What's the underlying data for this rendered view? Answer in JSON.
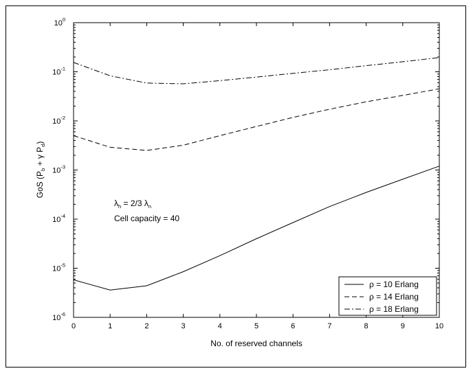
{
  "chart_data": {
    "type": "line",
    "title": "",
    "xlabel": "No. of reserved channels",
    "ylabel": {
      "base": "GoS (P",
      "sub_b": "b",
      "mid": " + γ P",
      "sub_d": "d",
      "end": ")"
    },
    "xlim": [
      0,
      10
    ],
    "ylim": [
      1e-06,
      1
    ],
    "yscale": "log",
    "grid": false,
    "legend_position": "bottom-right",
    "x_ticks": [
      "0",
      "1",
      "2",
      "3",
      "4",
      "5",
      "6",
      "7",
      "8",
      "9",
      "10"
    ],
    "y_ticks": [
      {
        "base": "10",
        "exp": "-6"
      },
      {
        "base": "10",
        "exp": "-5"
      },
      {
        "base": "10",
        "exp": "-4"
      },
      {
        "base": "10",
        "exp": "-3"
      },
      {
        "base": "10",
        "exp": "-2"
      },
      {
        "base": "10",
        "exp": "-1"
      },
      {
        "base": "10",
        "exp": "0"
      }
    ],
    "annotations": {
      "lambda": {
        "l1": "λ",
        "s1": "h",
        "mid": " = 2/3 λ",
        "s2": "n"
      },
      "capacity": "Cell capacity = 40"
    },
    "x": [
      0,
      1,
      2,
      3,
      4,
      5,
      6,
      7,
      8,
      9,
      10
    ],
    "series": [
      {
        "name": "ρ = 10 Erlang",
        "dash": "solid",
        "values": [
          5.8e-06,
          3.6e-06,
          4.4e-06,
          8.5e-06,
          1.8e-05,
          4e-05,
          8.5e-05,
          0.00018,
          0.00035,
          0.00065,
          0.0012
        ]
      },
      {
        "name": "ρ = 14 Erlang",
        "dash": "dashed",
        "values": [
          0.005,
          0.0029,
          0.0025,
          0.0032,
          0.005,
          0.0077,
          0.0118,
          0.0173,
          0.0245,
          0.033,
          0.045
        ]
      },
      {
        "name": "ρ = 18 Erlang",
        "dash": "dashdot",
        "values": [
          0.155,
          0.083,
          0.059,
          0.057,
          0.066,
          0.078,
          0.093,
          0.11,
          0.133,
          0.16,
          0.195
        ]
      }
    ]
  }
}
